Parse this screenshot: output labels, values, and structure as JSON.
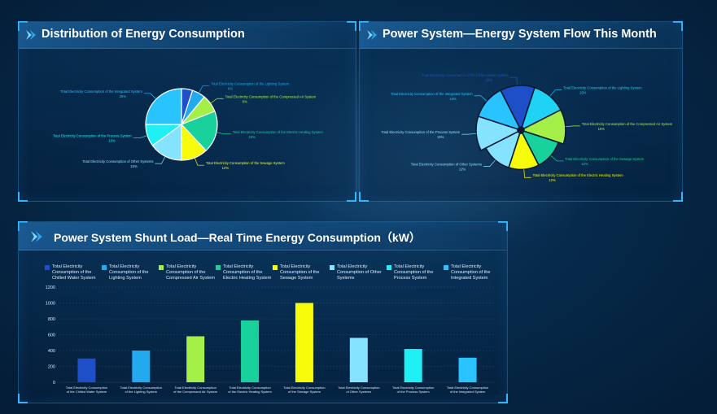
{
  "colors": {
    "chilled_water": "#1e4fc9",
    "lighting": "#22a9ee",
    "compressed_air": "#a4f049",
    "electric_heating": "#18d19b",
    "sewage": "#f5fb08",
    "other": "#86e3ff",
    "process": "#1ef0f4",
    "integrated": "#29c3ff"
  },
  "panel1": {
    "title": "Distribution of Energy Consumption",
    "chart_data": {
      "type": "pie",
      "slices": [
        {
          "name": "Total Electricity Consumption of the Chilled Water System",
          "value": 5,
          "color_key": "chilled_water"
        },
        {
          "name": "Total Electricity Consumption of the Lighting System",
          "value": 6,
          "label": "Total Electricity Consumption of the Lighting System 6%"
        },
        {
          "name": "Total Electricity Consumption of the Compressed Air System",
          "value": 8,
          "label": "Total Electricity Consumption of the Compressed Air System 8%"
        },
        {
          "name": "Total Electricity Consumption of the Electric Heating System",
          "value": 19,
          "label": "Total Electricity Consumption of the Electric Heating System 19%"
        },
        {
          "name": "Total Electricity Consumption of the Sewage System",
          "value": 12,
          "label": "Total Electricity Consumption of the Sewage System 12%"
        },
        {
          "name": "Total Electricity Consumption of Other Systems",
          "value": 15,
          "label": "Total Electricity Consumption of Other Systems 15%"
        },
        {
          "name": "Total Electricity Consumption of the Process System",
          "value": 10,
          "label": "Total Electricity Consumption of the Process System 10%"
        },
        {
          "name": "Total Electricity Consumption of the Integrated System",
          "value": 25,
          "label": "Total Electricity Consumption of the Integrated System 25%"
        }
      ]
    }
  },
  "panel2": {
    "title": "Power System—Energy System Flow This Month",
    "chart_data": {
      "type": "pie",
      "variant": "rose",
      "slices": [
        {
          "name": "Total Electricity Consumption of the Chilled Water System",
          "value": 15,
          "label": "Total Electricity Consumption of the Chilled Water System 15%"
        },
        {
          "name": "Total Electricity Consumption of the Lighting System",
          "value": 15,
          "label": "Total Electricity Consumption of the Lighting System 15%"
        },
        {
          "name": "Total Electricity Consumption of the Compressed Air System",
          "value": 15,
          "label": "Total Electricity Consumption of the Compressed Air System 15%"
        },
        {
          "name": "Total Electricity Consumption of the Sewage System",
          "value": 12,
          "label": "Total Electricity Consumption of the Sewage System 12%"
        },
        {
          "name": "Total Electricity Consumption of the Electric Heating System",
          "value": 12,
          "label": "Total Electricity Consumption of the Electric Heating System 12%"
        },
        {
          "name": "Total Electricity Consumption of Other Systems",
          "value": 12,
          "label": "Total Electricity Consumption of Other Systems 12%"
        },
        {
          "name": "Total Electricity Consumption of the Process System",
          "value": 15,
          "label": "Total Electricity Consumption of the Process System 15%"
        },
        {
          "name": "Total Electricity Consumption of the Integrated System",
          "value": 15,
          "label": "Total Electricity Consumption of the Integrated System 15%"
        }
      ]
    }
  },
  "panel3": {
    "title": "Power System Shunt Load—Real Time Energy Consumption（kW）",
    "legend": [
      "Total Electricity Consumption of the Chilled Water System",
      "Total Electricity Consumption of the Lighting System",
      "Total Electricity Consumption of the Compressed Air System",
      "Total Electricity Consumption of the Electric Heating System",
      "Total Electricity Consumption of the Sewage System",
      "Total Electricity Consumption of Other Systems",
      "Total Electricity Consumption of the Process System",
      "Total Electricity Consumption of the Integrated System"
    ],
    "chart_data": {
      "type": "bar",
      "categories": [
        "Total Electricity Consumption of the Chilled Water System",
        "Total Electricity Consumption of the Lighting System",
        "Total Electricity Consumption of the Compressed Air System",
        "Total Electricity Consumption of the Electric Heating System",
        "Total Electricity Consumption of the Sewage System",
        "Total Electricity Consumption of Other Systems",
        "Total Electricity Consumption of the Process System",
        "Total Electricity Consumption of the Integrated System"
      ],
      "tick_labels": [
        [
          "Total Electricity Consumption",
          "of the Chilled Water System"
        ],
        [
          "Total Electricity Consumption",
          "of the Lighting System"
        ],
        [
          "Total Electricity Consumption",
          "of the Compressed Air System"
        ],
        [
          "Total Electricity Consumption",
          "of the Electric Heating System"
        ],
        [
          "Total Electricity Consumption",
          "of the Sewage System"
        ],
        [
          "Total Electricity Consumption",
          "of Other Systems"
        ],
        [
          "Total Electricity Consumption",
          "of the Process System"
        ],
        [
          "Total Electricity Consumption",
          "of the Integrated System"
        ]
      ],
      "values": [
        300,
        400,
        580,
        780,
        1000,
        560,
        420,
        310
      ],
      "ylim": [
        0,
        1200
      ],
      "yticks": [
        0,
        200,
        400,
        600,
        800,
        1000,
        1200
      ],
      "grid": true
    }
  }
}
